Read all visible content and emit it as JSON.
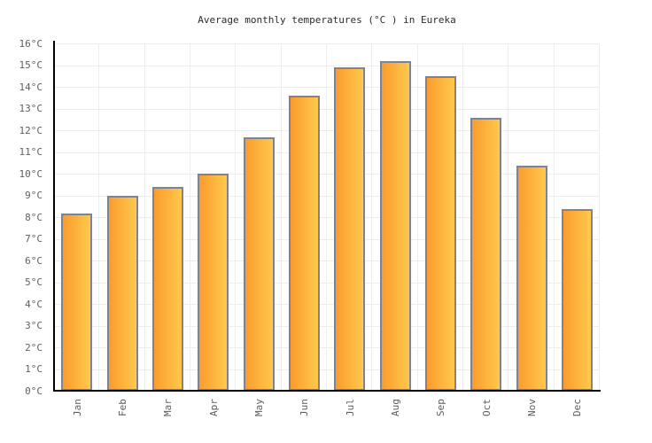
{
  "chart_data": {
    "type": "bar",
    "title": "Average monthly temperatures (°C ) in Eureka",
    "categories": [
      "Jan",
      "Feb",
      "Mar",
      "Apr",
      "May",
      "Jun",
      "Jul",
      "Aug",
      "Sep",
      "Oct",
      "Nov",
      "Dec"
    ],
    "values": [
      8.1,
      8.9,
      9.3,
      9.9,
      11.6,
      13.5,
      14.8,
      15.1,
      14.4,
      12.5,
      10.3,
      8.3
    ],
    "xlabel": "",
    "ylabel": "",
    "ylim": [
      0,
      16
    ],
    "y_tick_step": 1,
    "y_tick_labels": [
      "0°C",
      "1°C",
      "2°C",
      "3°C",
      "4°C",
      "5°C",
      "6°C",
      "7°C",
      "8°C",
      "9°C",
      "10°C",
      "11°C",
      "12°C",
      "13°C",
      "14°C",
      "15°C",
      "16°C"
    ],
    "grid": true,
    "legend": "none",
    "colors": {
      "bar_gradient_start": "#fa9c2d",
      "bar_gradient_end": "#ffc94e",
      "bar_border": "#82828c",
      "gridline": "#ededed",
      "axis_line": "#000000",
      "tick_label_text": "#5e5e5e",
      "title_text": "#2b2b2b",
      "background": "#ffffff"
    }
  }
}
